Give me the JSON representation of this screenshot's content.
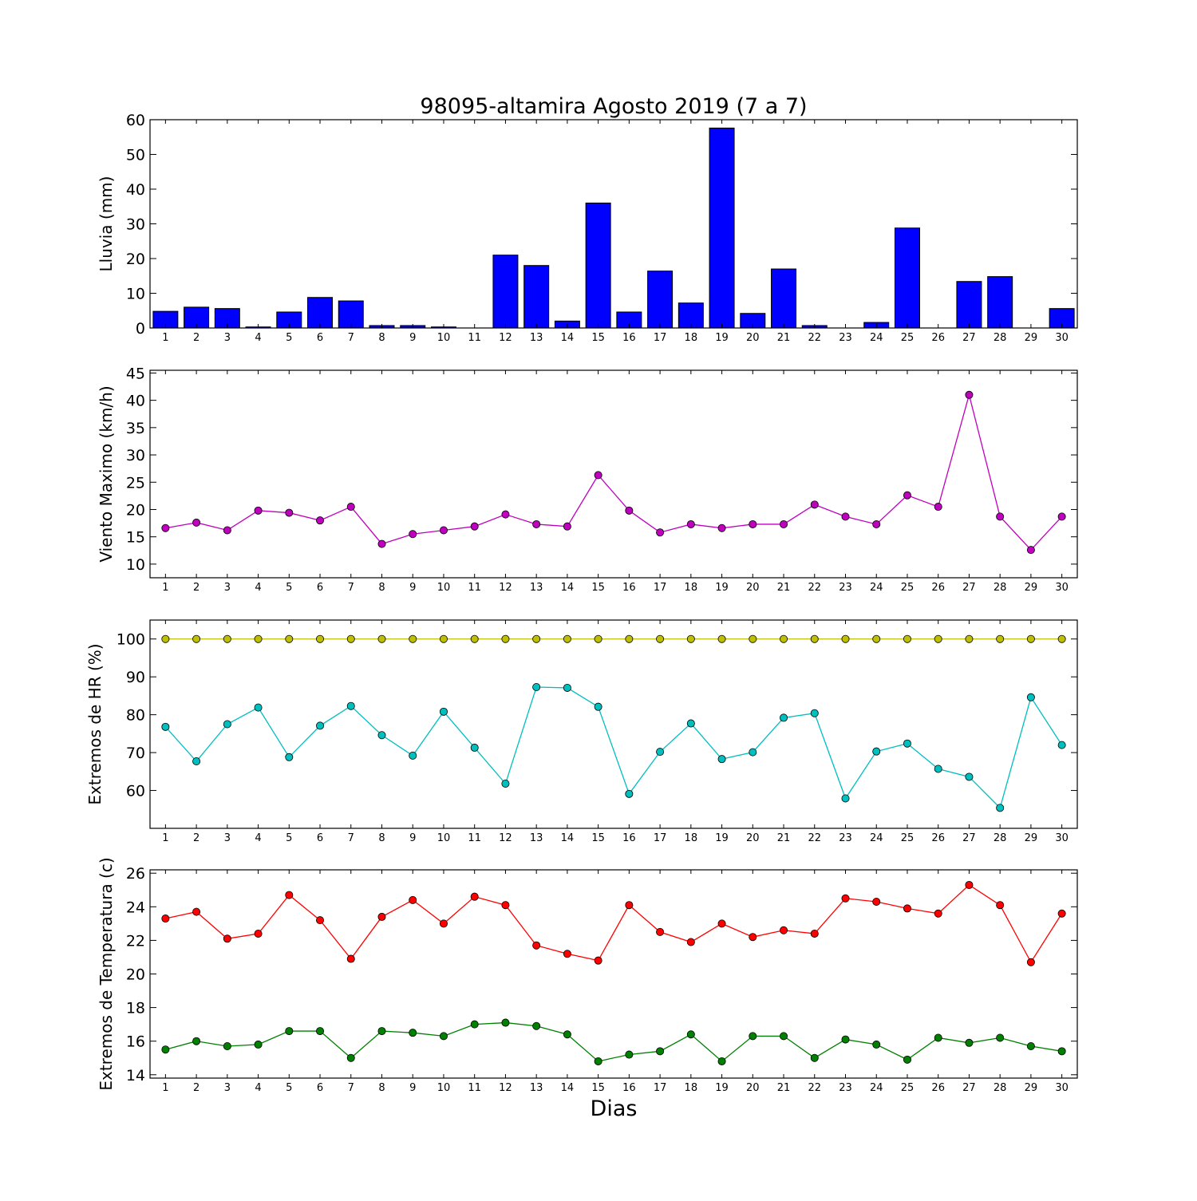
{
  "chart_data": [
    {
      "type": "bar",
      "title": "98095-altamira Agosto 2019  (7 a 7)",
      "ylabel": "Lluvia (mm)",
      "xlabel": "",
      "categories": [
        "1",
        "2",
        "3",
        "4",
        "5",
        "6",
        "7",
        "8",
        "9",
        "10",
        "11",
        "12",
        "13",
        "14",
        "15",
        "16",
        "17",
        "18",
        "19",
        "20",
        "21",
        "22",
        "23",
        "24",
        "25",
        "26",
        "27",
        "28",
        "29",
        "30"
      ],
      "values": [
        4.8,
        6.0,
        5.6,
        0.3,
        4.6,
        8.8,
        7.8,
        0.7,
        0.7,
        0.3,
        0,
        21.0,
        18.0,
        2.0,
        36.0,
        4.6,
        16.4,
        7.2,
        57.6,
        4.2,
        17.0,
        0.7,
        0,
        1.6,
        28.8,
        0,
        13.4,
        14.8,
        0,
        5.6
      ],
      "ylim": [
        0,
        60
      ],
      "yticks": [
        0,
        10,
        20,
        30,
        40,
        50,
        60
      ],
      "color": "#0000ff"
    },
    {
      "type": "line",
      "ylabel": "Viento Maximo (km/h)",
      "categories": [
        "1",
        "2",
        "3",
        "4",
        "5",
        "6",
        "7",
        "8",
        "9",
        "10",
        "11",
        "12",
        "13",
        "14",
        "15",
        "16",
        "17",
        "18",
        "19",
        "20",
        "21",
        "22",
        "23",
        "24",
        "25",
        "26",
        "27",
        "28",
        "29",
        "30"
      ],
      "series": [
        {
          "values": [
            16.6,
            17.6,
            16.2,
            19.8,
            19.4,
            18.0,
            20.5,
            13.7,
            15.5,
            16.2,
            16.9,
            19.1,
            17.3,
            16.9,
            26.3,
            19.8,
            15.8,
            17.3,
            16.6,
            17.3,
            17.3,
            20.9,
            18.7,
            17.3,
            22.6,
            20.5,
            41.0,
            18.7,
            12.6,
            18.7
          ],
          "color": "#bf00bf"
        }
      ],
      "ylim": [
        7.5,
        45.5
      ],
      "yticks": [
        10,
        15,
        20,
        25,
        30,
        35,
        40,
        45
      ]
    },
    {
      "type": "line",
      "ylabel": "Extremos de HR (%)",
      "categories": [
        "1",
        "2",
        "3",
        "4",
        "5",
        "6",
        "7",
        "8",
        "9",
        "10",
        "11",
        "12",
        "13",
        "14",
        "15",
        "16",
        "17",
        "18",
        "19",
        "20",
        "21",
        "22",
        "23",
        "24",
        "25",
        "26",
        "27",
        "28",
        "29",
        "30"
      ],
      "series": [
        {
          "values": [
            100,
            100,
            100,
            100,
            100,
            100,
            100,
            100,
            100,
            100,
            100,
            100,
            100,
            100,
            100,
            100,
            100,
            100,
            100,
            100,
            100,
            100,
            100,
            100,
            100,
            100,
            100,
            100,
            100,
            100
          ],
          "color": "#bfbf00"
        },
        {
          "values": [
            76.8,
            67.7,
            77.5,
            81.9,
            68.8,
            77.1,
            82.3,
            74.6,
            69.2,
            80.8,
            71.3,
            61.8,
            87.3,
            87.1,
            82.1,
            59.1,
            70.2,
            77.7,
            68.3,
            70.1,
            79.2,
            80.4,
            57.9,
            70.3,
            72.4,
            65.7,
            63.6,
            55.4,
            84.6,
            72.0
          ],
          "color": "#00bfbf"
        }
      ],
      "ylim": [
        50,
        105
      ],
      "yticks": [
        60,
        70,
        80,
        90,
        100
      ]
    },
    {
      "type": "line",
      "ylabel": "Extremos de Temperatura (c)",
      "xlabel": "Dias",
      "categories": [
        "1",
        "2",
        "3",
        "4",
        "5",
        "6",
        "7",
        "8",
        "9",
        "10",
        "11",
        "12",
        "13",
        "14",
        "15",
        "16",
        "17",
        "18",
        "19",
        "20",
        "21",
        "22",
        "23",
        "24",
        "25",
        "26",
        "27",
        "28",
        "29",
        "30"
      ],
      "series": [
        {
          "values": [
            23.3,
            23.7,
            22.1,
            22.4,
            24.7,
            23.2,
            20.9,
            23.4,
            24.4,
            23.0,
            24.6,
            24.1,
            21.7,
            21.2,
            20.8,
            24.1,
            22.5,
            21.9,
            23.0,
            22.2,
            22.6,
            22.4,
            24.5,
            24.3,
            23.9,
            23.6,
            25.3,
            24.1,
            20.7,
            23.6
          ],
          "color": "#ff0000"
        },
        {
          "values": [
            15.5,
            16.0,
            15.7,
            15.8,
            16.6,
            16.6,
            15.0,
            16.6,
            16.5,
            16.3,
            17.0,
            17.1,
            16.9,
            16.4,
            14.8,
            15.2,
            15.4,
            16.4,
            14.8,
            16.3,
            16.3,
            15.0,
            16.1,
            15.8,
            14.9,
            16.2,
            15.9,
            16.2,
            15.7,
            15.4
          ],
          "color": "#008000"
        }
      ],
      "ylim": [
        13.8,
        26.2
      ],
      "yticks": [
        14,
        16,
        18,
        20,
        22,
        24,
        26
      ]
    }
  ]
}
